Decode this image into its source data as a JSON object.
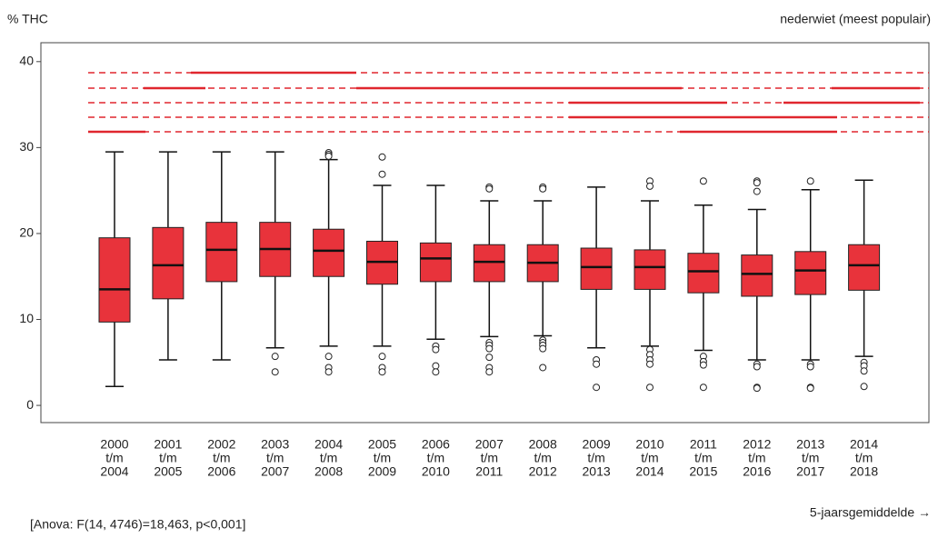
{
  "chart_data": {
    "type": "box",
    "title": "nederwiet (meest populair)",
    "y_label": "% THC",
    "x_label": "5-jaarsgemiddelde →",
    "annotation": "[Anova: F(14, 4746)=18,463, p<0,001]",
    "color": "#e8333b",
    "ylim": [
      -2,
      42.2
    ],
    "yticks": [
      0,
      10,
      20,
      30,
      40
    ],
    "categories": [
      [
        "2000",
        "t/m",
        "2004"
      ],
      [
        "2001",
        "t/m",
        "2005"
      ],
      [
        "2002",
        "t/m",
        "2006"
      ],
      [
        "2003",
        "t/m",
        "2007"
      ],
      [
        "2004",
        "t/m",
        "2008"
      ],
      [
        "2005",
        "t/m",
        "2009"
      ],
      [
        "2006",
        "t/m",
        "2010"
      ],
      [
        "2007",
        "t/m",
        "2011"
      ],
      [
        "2008",
        "t/m",
        "2012"
      ],
      [
        "2009",
        "t/m",
        "2013"
      ],
      [
        "2010",
        "t/m",
        "2014"
      ],
      [
        "2011",
        "t/m",
        "2015"
      ],
      [
        "2012",
        "t/m",
        "2016"
      ],
      [
        "2013",
        "t/m",
        "2017"
      ],
      [
        "2014",
        "t/m",
        "2018"
      ]
    ],
    "boxes": [
      {
        "whisker_low": 2.2,
        "q1": 9.7,
        "median": 13.5,
        "q3": 19.5,
        "whisker_high": 29.5,
        "outliers": []
      },
      {
        "whisker_low": 5.3,
        "q1": 12.4,
        "median": 16.3,
        "q3": 20.7,
        "whisker_high": 29.5,
        "outliers": []
      },
      {
        "whisker_low": 5.3,
        "q1": 14.4,
        "median": 18.1,
        "q3": 21.3,
        "whisker_high": 29.5,
        "outliers": []
      },
      {
        "whisker_low": 6.7,
        "q1": 15.0,
        "median": 18.2,
        "q3": 21.3,
        "whisker_high": 29.5,
        "outliers": [
          5.7,
          3.9
        ]
      },
      {
        "whisker_low": 6.9,
        "q1": 15.0,
        "median": 18.0,
        "q3": 20.5,
        "whisker_high": 28.6,
        "outliers": [
          29.4,
          29.2,
          29.0,
          5.7,
          4.4,
          3.9
        ]
      },
      {
        "whisker_low": 6.9,
        "q1": 14.1,
        "median": 16.7,
        "q3": 19.1,
        "whisker_high": 25.6,
        "outliers": [
          28.9,
          26.9,
          5.7,
          4.4,
          3.9
        ]
      },
      {
        "whisker_low": 7.7,
        "q1": 14.4,
        "median": 17.1,
        "q3": 18.9,
        "whisker_high": 25.6,
        "outliers": [
          6.9,
          6.5,
          4.6,
          3.9
        ]
      },
      {
        "whisker_low": 8.0,
        "q1": 14.4,
        "median": 16.7,
        "q3": 18.7,
        "whisker_high": 23.8,
        "outliers": [
          25.4,
          25.2,
          7.3,
          7.0,
          6.6,
          5.6,
          4.4,
          3.9
        ]
      },
      {
        "whisker_low": 8.1,
        "q1": 14.4,
        "median": 16.6,
        "q3": 18.7,
        "whisker_high": 23.8,
        "outliers": [
          25.4,
          25.2,
          7.6,
          7.3,
          7.0,
          6.6,
          4.4
        ]
      },
      {
        "whisker_low": 6.7,
        "q1": 13.5,
        "median": 16.1,
        "q3": 18.3,
        "whisker_high": 25.4,
        "outliers": [
          5.3,
          4.8,
          2.1
        ]
      },
      {
        "whisker_low": 6.9,
        "q1": 13.5,
        "median": 16.1,
        "q3": 18.1,
        "whisker_high": 23.8,
        "outliers": [
          26.1,
          25.5,
          6.5,
          5.9,
          5.3,
          4.8,
          2.1
        ]
      },
      {
        "whisker_low": 6.4,
        "q1": 13.1,
        "median": 15.6,
        "q3": 17.7,
        "whisker_high": 23.3,
        "outliers": [
          26.1,
          5.7,
          5.1,
          4.7,
          2.1
        ]
      },
      {
        "whisker_low": 5.3,
        "q1": 12.7,
        "median": 15.3,
        "q3": 17.5,
        "whisker_high": 22.8,
        "outliers": [
          26.1,
          25.9,
          24.9,
          4.8,
          4.5,
          2.1,
          2.0
        ]
      },
      {
        "whisker_low": 5.3,
        "q1": 12.9,
        "median": 15.7,
        "q3": 17.9,
        "whisker_high": 25.1,
        "outliers": [
          26.1,
          4.8,
          4.5,
          2.1,
          2.0
        ]
      },
      {
        "whisker_low": 5.7,
        "q1": 13.4,
        "median": 16.3,
        "q3": 18.7,
        "whisker_high": 26.2,
        "outliers": [
          5.0,
          4.6,
          4.0,
          2.2
        ]
      }
    ]
  }
}
